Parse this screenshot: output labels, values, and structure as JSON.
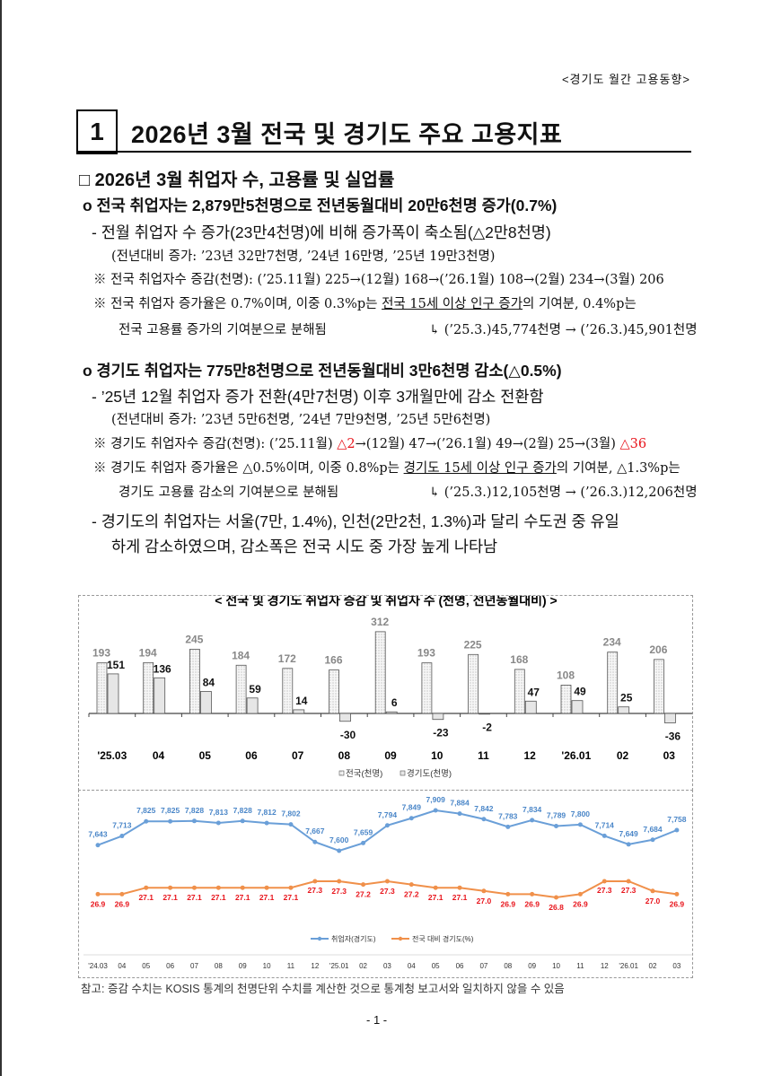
{
  "header": "<경기도 월간 고용동향>",
  "title": {
    "number": "1",
    "text": "2026년 3월 전국 및 경기도 주요 고용지표"
  },
  "section": "□ 2026년 3월 취업자 수, 고용률 및 실업률",
  "national": {
    "headline": "o 전국 취업자는 2,879만5천명으로 전년동월대비 20만6천명 증가(0.7%)",
    "sub1": "- 전월 취업자 수 증가(23만4천명)에 비해 증가폭이 축소됨(△2만8천명)",
    "sub1_detail": "(전년대비 증가: ’23년 32만7천명, ’24년 16만명, ’25년 19만3천명)",
    "note1": "※ 전국 취업자수 증감(천명): (’25.11월) 225→(12월) 168→(’26.1월) 108→(2월) 234→(3월) 206",
    "note2_a": "※ 전국 취업자 증가율은 0.7%이며, 이중 0.3%p는 ",
    "note2_u": "전국 15세 이상 인구 증가",
    "note2_b": "의 기여분, 0.4%p는",
    "note3_a": "전국 고용률 증가의 기여분으로 분해됨",
    "note3_b": "↳ (’25.3.)45,774천명 → (’26.3.)45,901천명"
  },
  "gyeonggi": {
    "headline": "o 경기도 취업자는 775만8천명으로 전년동월대비 3만6천명 감소(△0.5%)",
    "sub1": "- ’25년 12월 취업자 증가 전환(4만7천명) 이후 3개월만에 감소 전환함",
    "sub1_detail": "(전년대비 증가: ’23년 5만6천명, ’24년 7만9천명, ’25년 5만6천명)",
    "note1_a": "※ 경기도 취업자수 증감(천명): (’25.11월) ",
    "note1_r1": "△2",
    "note1_b": "→(12월) 47→(’26.1월) 49→(2월) 25→(3월) ",
    "note1_r2": "△36",
    "note2_a": "※ 경기도 취업자 증가율은 △0.5%이며, 이중 0.8%p는 ",
    "note2_u": "경기도 15세 이상 인구 증가",
    "note2_b": "의 기여분, △1.3%p는",
    "note3_a": "경기도 고용률 감소의 기여분으로 분해됨",
    "note3_b": "↳ (’25.3.)12,105천명 → (’26.3.)12,206천명",
    "sub2_l1": "- 경기도의 취업자는 서울(7만, 1.4%), 인천(2만2천, 1.3%)과 달리 수도권 중 유일",
    "sub2_l2": "하게 감소하였으며, 감소폭은 전국 시도 중 가장 높게 나타남"
  },
  "chart_data": [
    {
      "type": "bar",
      "title": "< 전국 및 경기도 취업자 증감 및 취업자 수 (천명, 전년동월대비) >",
      "categories": [
        "'25.03",
        "04",
        "05",
        "06",
        "07",
        "08",
        "09",
        "10",
        "11",
        "12",
        "'26.01",
        "02",
        "03"
      ],
      "series": [
        {
          "name": "전국(천명)",
          "values": [
            193,
            194,
            245,
            184,
            172,
            166,
            312,
            193,
            225,
            168,
            108,
            234,
            206
          ],
          "color": "#f2f2f2"
        },
        {
          "name": "경기도(천명)",
          "values": [
            151,
            136,
            84,
            59,
            14,
            -30,
            6,
            -23,
            -2,
            47,
            49,
            25,
            -36
          ],
          "color": "#e6e6e6"
        }
      ],
      "legend": "bottom"
    },
    {
      "type": "line",
      "categories": [
        "'24.03",
        "04",
        "05",
        "06",
        "07",
        "08",
        "09",
        "10",
        "11",
        "12",
        "'25.01",
        "02",
        "03",
        "04",
        "05",
        "06",
        "07",
        "08",
        "09",
        "10",
        "11",
        "12",
        "'26.01",
        "02",
        "03"
      ],
      "series": [
        {
          "name": "취업자(경기도)",
          "values": [
            7643,
            7713,
            7825,
            7825,
            7828,
            7813,
            7828,
            7812,
            7802,
            7667,
            7600,
            7659,
            7794,
            7849,
            7909,
            7884,
            7842,
            7783,
            7834,
            7789,
            7800,
            7714,
            7649,
            7684,
            7758
          ],
          "color": "#6a9fd8"
        },
        {
          "name": "전국 대비 경기도(%)",
          "values": [
            26.9,
            26.9,
            27.1,
            27.1,
            27.1,
            27.1,
            27.1,
            27.1,
            27.1,
            27.3,
            27.3,
            27.2,
            27.3,
            27.2,
            27.1,
            27.1,
            27.0,
            26.9,
            26.9,
            26.8,
            26.9,
            27.3,
            27.3,
            27.0,
            26.9
          ],
          "color": "#f0904a",
          "label_color": "#e8141b"
        }
      ],
      "legend": "bottom"
    }
  ],
  "footnote": "참고: 증감 수치는 KOSIS 통계의 천명단위 수치를 계산한 것으로 통계청 보고서와 일치하지 않을 수 있음",
  "page_number": "- 1 -"
}
